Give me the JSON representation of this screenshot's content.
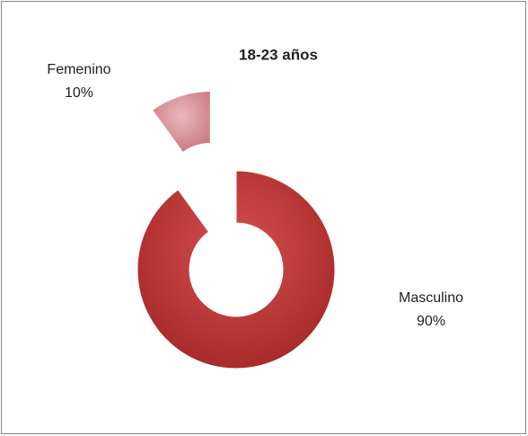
{
  "chart_data": {
    "type": "donut",
    "title": "18-23 años",
    "categories": [
      "Masculino",
      "Femenino"
    ],
    "values": [
      90,
      10
    ],
    "value_labels": [
      "90%",
      "10%"
    ],
    "colors": [
      "#b83333",
      "#d9959a"
    ],
    "exploded": [
      false,
      true
    ]
  }
}
